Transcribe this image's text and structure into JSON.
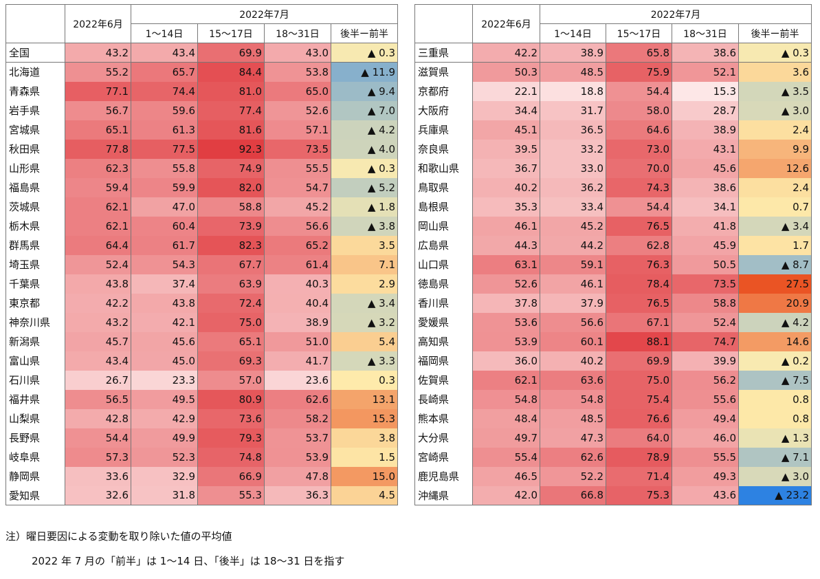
{
  "headers": {
    "june": "2022年6月",
    "july": "2022年7月",
    "periods": [
      "1～14日",
      "15～17日",
      "18～31日",
      "後半ー前半"
    ]
  },
  "chart_data": {
    "type": "table",
    "columns": [
      "2022年6月",
      "2022年7月 1～14日",
      "2022年7月 15～17日",
      "2022年7月 18～31日",
      "後半ー前半"
    ],
    "left_rows": [
      {
        "name": "全国",
        "values": [
          43.2,
          43.4,
          69.9,
          43.0
        ],
        "diff": "▲ 0.3",
        "diff_value": -0.3
      },
      {
        "name": "北海道",
        "values": [
          55.2,
          65.7,
          84.4,
          53.8
        ],
        "diff": "▲ 11.9",
        "diff_value": -11.9
      },
      {
        "name": "青森県",
        "values": [
          77.1,
          74.4,
          81.0,
          65.0
        ],
        "diff": "▲ 9.4",
        "diff_value": -9.4
      },
      {
        "name": "岩手県",
        "values": [
          56.7,
          59.6,
          77.4,
          52.6
        ],
        "diff": "▲ 7.0",
        "diff_value": -7.0
      },
      {
        "name": "宮城県",
        "values": [
          65.1,
          61.3,
          81.6,
          57.1
        ],
        "diff": "▲ 4.2",
        "diff_value": -4.2
      },
      {
        "name": "秋田県",
        "values": [
          77.8,
          77.5,
          92.3,
          73.5
        ],
        "diff": "▲ 4.0",
        "diff_value": -4.0
      },
      {
        "name": "山形県",
        "values": [
          62.3,
          55.8,
          74.9,
          55.5
        ],
        "diff": "▲ 0.3",
        "diff_value": -0.3
      },
      {
        "name": "福島県",
        "values": [
          59.4,
          59.9,
          82.0,
          54.7
        ],
        "diff": "▲ 5.2",
        "diff_value": -5.2
      },
      {
        "name": "茨城県",
        "values": [
          62.1,
          47.0,
          58.8,
          45.2
        ],
        "diff": "▲ 1.8",
        "diff_value": -1.8
      },
      {
        "name": "栃木県",
        "values": [
          62.1,
          60.4,
          73.9,
          56.6
        ],
        "diff": "▲ 3.8",
        "diff_value": -3.8
      },
      {
        "name": "群馬県",
        "values": [
          64.4,
          61.7,
          82.3,
          65.2
        ],
        "diff": "3.5",
        "diff_value": 3.5
      },
      {
        "name": "埼玉県",
        "values": [
          52.4,
          54.3,
          67.7,
          61.4
        ],
        "diff": "7.1",
        "diff_value": 7.1
      },
      {
        "name": "千葉県",
        "values": [
          43.8,
          37.4,
          63.9,
          40.3
        ],
        "diff": "2.9",
        "diff_value": 2.9
      },
      {
        "name": "東京都",
        "values": [
          42.2,
          43.8,
          72.4,
          40.4
        ],
        "diff": "▲ 3.4",
        "diff_value": -3.4
      },
      {
        "name": "神奈川県",
        "values": [
          43.2,
          42.1,
          75.0,
          38.9
        ],
        "diff": "▲ 3.2",
        "diff_value": -3.2
      },
      {
        "name": "新潟県",
        "values": [
          45.7,
          45.6,
          65.1,
          51.0
        ],
        "diff": "5.4",
        "diff_value": 5.4
      },
      {
        "name": "富山県",
        "values": [
          43.4,
          45.0,
          69.3,
          41.7
        ],
        "diff": "▲ 3.3",
        "diff_value": -3.3
      },
      {
        "name": "石川県",
        "values": [
          26.7,
          23.3,
          57.0,
          23.6
        ],
        "diff": "0.3",
        "diff_value": 0.3
      },
      {
        "name": "福井県",
        "values": [
          56.5,
          49.5,
          80.9,
          62.6
        ],
        "diff": "13.1",
        "diff_value": 13.1
      },
      {
        "name": "山梨県",
        "values": [
          42.8,
          42.9,
          73.6,
          58.2
        ],
        "diff": "15.3",
        "diff_value": 15.3
      },
      {
        "name": "長野県",
        "values": [
          54.4,
          49.9,
          79.3,
          53.7
        ],
        "diff": "3.8",
        "diff_value": 3.8
      },
      {
        "name": "岐阜県",
        "values": [
          57.3,
          52.3,
          74.8,
          53.9
        ],
        "diff": "1.5",
        "diff_value": 1.5
      },
      {
        "name": "静岡県",
        "values": [
          33.6,
          32.9,
          66.9,
          47.8
        ],
        "diff": "15.0",
        "diff_value": 15.0
      },
      {
        "name": "愛知県",
        "values": [
          32.6,
          31.8,
          55.3,
          36.3
        ],
        "diff": "4.5",
        "diff_value": 4.5
      }
    ],
    "right_rows": [
      {
        "name": "三重県",
        "values": [
          42.2,
          38.9,
          65.8,
          38.6
        ],
        "diff": "▲ 0.3",
        "diff_value": -0.3
      },
      {
        "name": "滋賀県",
        "values": [
          50.3,
          48.5,
          75.9,
          52.1
        ],
        "diff": "3.6",
        "diff_value": 3.6
      },
      {
        "name": "京都府",
        "values": [
          22.1,
          18.8,
          54.4,
          15.3
        ],
        "diff": "▲ 3.5",
        "diff_value": -3.5
      },
      {
        "name": "大阪府",
        "values": [
          34.4,
          31.7,
          58.0,
          28.7
        ],
        "diff": "▲ 3.0",
        "diff_value": -3.0
      },
      {
        "name": "兵庫県",
        "values": [
          45.1,
          36.5,
          64.6,
          38.9
        ],
        "diff": "2.4",
        "diff_value": 2.4
      },
      {
        "name": "奈良県",
        "values": [
          39.5,
          33.2,
          73.0,
          43.1
        ],
        "diff": "9.9",
        "diff_value": 9.9
      },
      {
        "name": "和歌山県",
        "values": [
          36.7,
          33.0,
          70.0,
          45.6
        ],
        "diff": "12.6",
        "diff_value": 12.6
      },
      {
        "name": "鳥取県",
        "values": [
          40.2,
          36.2,
          74.3,
          38.6
        ],
        "diff": "2.4",
        "diff_value": 2.4
      },
      {
        "name": "島根県",
        "values": [
          35.3,
          33.4,
          54.4,
          34.1
        ],
        "diff": "0.7",
        "diff_value": 0.7
      },
      {
        "name": "岡山県",
        "values": [
          46.1,
          45.2,
          76.5,
          41.8
        ],
        "diff": "▲ 3.4",
        "diff_value": -3.4
      },
      {
        "name": "広島県",
        "values": [
          44.3,
          44.2,
          62.8,
          45.9
        ],
        "diff": "1.7",
        "diff_value": 1.7
      },
      {
        "name": "山口県",
        "values": [
          63.1,
          59.1,
          76.3,
          50.5
        ],
        "diff": "▲ 8.7",
        "diff_value": -8.7
      },
      {
        "name": "徳島県",
        "values": [
          52.6,
          46.1,
          78.4,
          73.5
        ],
        "diff": "27.5",
        "diff_value": 27.5
      },
      {
        "name": "香川県",
        "values": [
          37.8,
          37.9,
          76.5,
          58.8
        ],
        "diff": "20.9",
        "diff_value": 20.9
      },
      {
        "name": "愛媛県",
        "values": [
          53.6,
          56.6,
          67.1,
          52.4
        ],
        "diff": "▲ 4.2",
        "diff_value": -4.2
      },
      {
        "name": "高知県",
        "values": [
          53.9,
          60.1,
          88.1,
          74.7
        ],
        "diff": "14.6",
        "diff_value": 14.6
      },
      {
        "name": "福岡県",
        "values": [
          36.0,
          40.2,
          69.9,
          39.9
        ],
        "diff": "▲ 0.2",
        "diff_value": -0.2
      },
      {
        "name": "佐賀県",
        "values": [
          62.1,
          63.6,
          75.0,
          56.2
        ],
        "diff": "▲ 7.5",
        "diff_value": -7.5
      },
      {
        "name": "長崎県",
        "values": [
          54.8,
          54.8,
          75.4,
          55.6
        ],
        "diff": "0.8",
        "diff_value": 0.8
      },
      {
        "name": "熊本県",
        "values": [
          48.4,
          48.5,
          76.6,
          49.4
        ],
        "diff": "0.8",
        "diff_value": 0.8
      },
      {
        "name": "大分県",
        "values": [
          49.7,
          47.3,
          64.0,
          46.0
        ],
        "diff": "▲ 1.3",
        "diff_value": -1.3
      },
      {
        "name": "宮崎県",
        "values": [
          55.4,
          62.6,
          78.9,
          55.5
        ],
        "diff": "▲ 7.1",
        "diff_value": -7.1
      },
      {
        "name": "鹿児島県",
        "values": [
          46.5,
          52.2,
          71.4,
          49.3
        ],
        "diff": "▲ 3.0",
        "diff_value": -3.0
      },
      {
        "name": "沖縄県",
        "values": [
          42.0,
          66.8,
          75.3,
          43.6
        ],
        "diff": "▲ 23.2",
        "diff_value": -23.2
      }
    ]
  },
  "notes": {
    "line1": "注）曜日要因による変動を取り除いた値の平均値",
    "line2": "2022 年 7 月の「前半」は 1～14 日、「後半」は 18～31 日を指す"
  }
}
